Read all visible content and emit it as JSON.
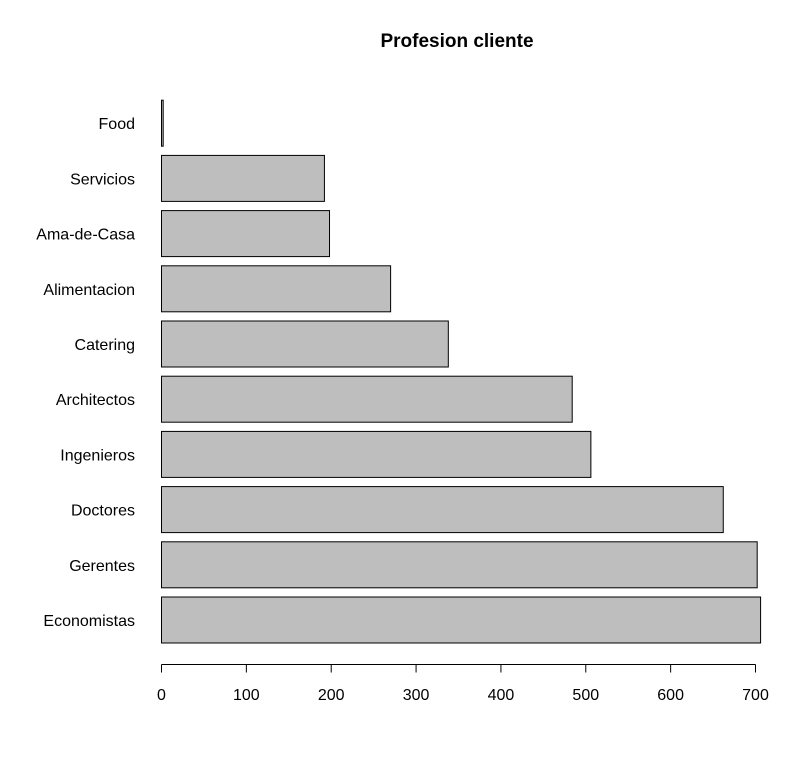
{
  "chart_data": {
    "type": "bar",
    "orientation": "horizontal",
    "title": "Profesion cliente",
    "xlabel": "",
    "ylabel": "",
    "categories": [
      "Economistas",
      "Gerentes",
      "Doctores",
      "Ingenieros",
      "Architectos",
      "Catering",
      "Alimentacion",
      "Ama-de-Casa",
      "Servicios",
      "Food"
    ],
    "values": [
      706,
      702,
      662,
      506,
      484,
      338,
      270,
      198,
      192,
      2
    ],
    "xlim": [
      0,
      700
    ],
    "xticks": [
      0,
      100,
      200,
      300,
      400,
      500,
      600,
      700
    ],
    "bar_color": "#bebebe",
    "border_color": "#000000",
    "grid": false
  }
}
